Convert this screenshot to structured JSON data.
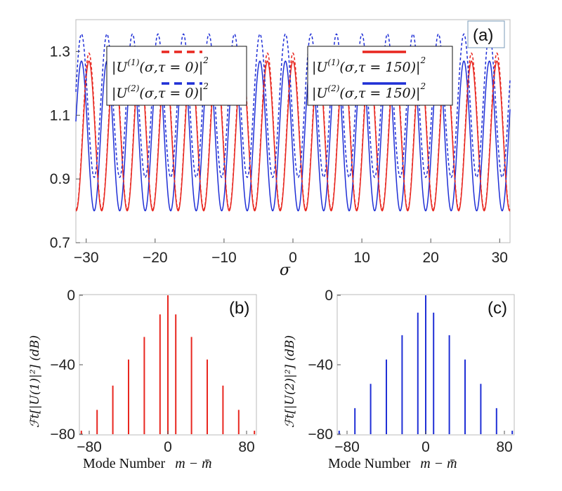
{
  "chart_data": [
    {
      "panel": "(a)",
      "type": "line",
      "xlabel": "σ",
      "ylabel": "",
      "xlim": [
        -31.5,
        31.5
      ],
      "ylim": [
        0.7,
        1.4
      ],
      "xticks": [
        "-30",
        "-20",
        "-10",
        "0",
        "10",
        "20",
        "30"
      ],
      "yticks": [
        "0.7",
        "0.9",
        "1.1",
        "1.3"
      ],
      "period": 3.7,
      "series": [
        {
          "name": "|U(1)(σ,τ = 0)|²",
          "color": "#e8261f",
          "dash": "dashed",
          "mean": 1.05,
          "amplitude": 0.245,
          "min": 0.805,
          "max": 1.295,
          "phase": 0.0
        },
        {
          "name": "|U(2)(σ,τ = 0)|²",
          "color": "#1f2fd6",
          "dash": "dashed",
          "mean": 1.13,
          "amplitude": 0.225,
          "min": 0.905,
          "max": 1.355,
          "phase": 1.85
        },
        {
          "name": "|U(1)(σ,τ = 150)|²",
          "color": "#e8261f",
          "dash": "solid",
          "mean": 1.035,
          "amplitude": 0.235,
          "min": 0.8,
          "max": 1.27,
          "phase": 0.0
        },
        {
          "name": "|U(2)(σ,τ = 150)|²",
          "color": "#1f2fd6",
          "dash": "solid",
          "mean": 1.035,
          "amplitude": 0.235,
          "min": 0.8,
          "max": 1.27,
          "phase": 1.85
        }
      ],
      "legend": {
        "left": [
          {
            "text": "|U(1)(σ,τ = 0)|²",
            "color": "#e8261f",
            "dash": "dashed"
          },
          {
            "text": "|U(2)(σ,τ = 0)|²",
            "color": "#1f2fd6",
            "dash": "dashed"
          }
        ],
        "right": [
          {
            "text": "|U(1)(σ,τ = 150)|²",
            "color": "#e8261f",
            "dash": "solid"
          },
          {
            "text": "|U(2)(σ,τ = 150)|²",
            "color": "#1f2fd6",
            "dash": "solid"
          }
        ]
      }
    },
    {
      "panel": "(b)",
      "type": "bar",
      "color": "#e8261f",
      "xlabel": "Mode Number m − m̄",
      "ylabel": "ℱt[|U(1)|²] (dB)",
      "xlim": [
        -90,
        90
      ],
      "ylim": [
        -80,
        0
      ],
      "xticks": [
        "-80",
        "0",
        "80"
      ],
      "yticks": [
        "0",
        "-40",
        "-80"
      ],
      "x": [
        -88,
        -72,
        -56,
        -40,
        -24,
        -8,
        0,
        8,
        24,
        40,
        56,
        72,
        88
      ],
      "values": [
        -78,
        -66,
        -52,
        -37,
        -24,
        -11,
        0,
        -11,
        -24,
        -37,
        -52,
        -66,
        -78
      ]
    },
    {
      "panel": "(c)",
      "type": "bar",
      "color": "#1f2fd6",
      "xlabel": "Mode Number m − m̄",
      "ylabel": "ℱt[|U(2)|²] (dB)",
      "xlim": [
        -90,
        90
      ],
      "ylim": [
        -80,
        0
      ],
      "xticks": [
        "-80",
        "0",
        "80"
      ],
      "yticks": [
        "0",
        "-40",
        "-80"
      ],
      "x": [
        -88,
        -72,
        -56,
        -40,
        -24,
        -8,
        0,
        8,
        24,
        40,
        56,
        72,
        88
      ],
      "values": [
        -78,
        -65,
        -51,
        -37,
        -23,
        -10,
        0,
        -10,
        -23,
        -37,
        -51,
        -65,
        -78
      ]
    }
  ],
  "legend_text": {
    "l1_a": "|U",
    "l1_sup": "(1)",
    "l1_b": "(σ,τ = 0)|",
    "l2_a": "|U",
    "l2_sup": "(2)",
    "l2_b": "(σ,τ = 0)|",
    "r1_a": "|U",
    "r1_sup": "(1)",
    "r1_b": "(σ,τ = 150)|",
    "r2_a": "|U",
    "r2_sup": "(2)",
    "r2_b": "(σ,τ = 150)|",
    "sq": "2"
  },
  "labels": {
    "panel_a": "(a)",
    "panel_b": "(b)",
    "panel_c": "(c)",
    "sigma": "σ",
    "mode_number": "Mode Number",
    "mode_var": "m − m̄",
    "ylabel_b": "ℱt[|U(1)|²] (dB)",
    "ylabel_c": "ℱt[|U(2)|²] (dB)"
  }
}
